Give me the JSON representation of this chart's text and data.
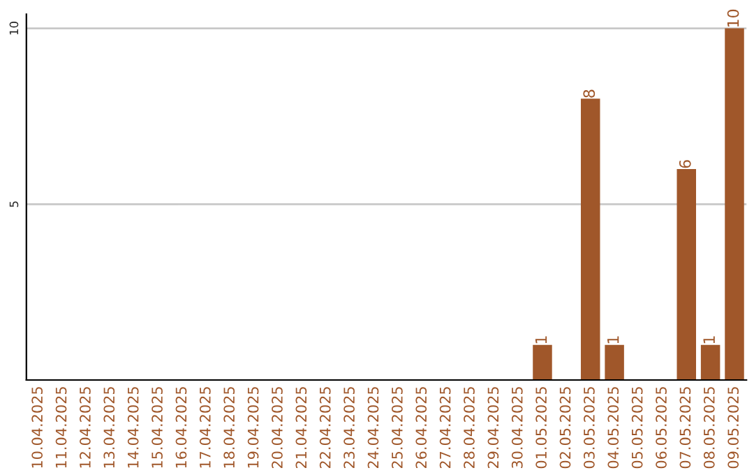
{
  "chart_data": {
    "type": "bar",
    "categories": [
      "10.04.2025",
      "11.04.2025",
      "12.04.2025",
      "13.04.2025",
      "14.04.2025",
      "15.04.2025",
      "16.04.2025",
      "17.04.2025",
      "18.04.2025",
      "19.04.2025",
      "20.04.2025",
      "21.04.2025",
      "22.04.2025",
      "23.04.2025",
      "24.04.2025",
      "25.04.2025",
      "26.04.2025",
      "27.04.2025",
      "28.04.2025",
      "29.04.2025",
      "30.04.2025",
      "01.05.2025",
      "02.05.2025",
      "03.05.2025",
      "04.05.2025",
      "05.05.2025",
      "06.05.2025",
      "07.05.2025",
      "08.05.2025",
      "09.05.2025"
    ],
    "values": [
      0,
      0,
      0,
      0,
      0,
      0,
      0,
      0,
      0,
      0,
      0,
      0,
      0,
      0,
      0,
      0,
      0,
      0,
      0,
      0,
      0,
      1,
      0,
      8,
      1,
      0,
      0,
      6,
      1,
      10
    ],
    "value_labels": [
      null,
      null,
      null,
      null,
      null,
      null,
      null,
      null,
      null,
      null,
      null,
      null,
      null,
      null,
      null,
      null,
      null,
      null,
      null,
      null,
      null,
      "1",
      null,
      "8",
      "1",
      null,
      null,
      "6",
      "1",
      "10"
    ],
    "color": "#a0572a",
    "ylim": [
      0,
      10.4
    ],
    "yticks": [
      5,
      10
    ],
    "grid": "y"
  }
}
